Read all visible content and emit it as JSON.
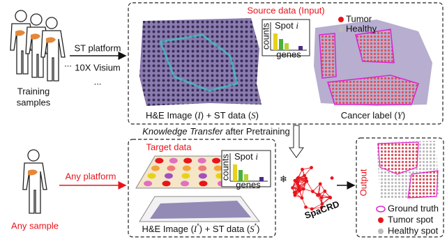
{
  "training": {
    "label_top": "Training",
    "label_bottom": "samples",
    "platform": "ST platform",
    "platform_name": "10X Visium",
    "more": "...",
    "more_people": "..."
  },
  "source_panel": {
    "title": "Source data (Input)",
    "he_caption": [
      "H&E Image (",
      "I",
      ") + ST data (",
      "S",
      ")"
    ],
    "label_caption": [
      "Cancer label (",
      "Y",
      ")"
    ],
    "legend": [
      "Tumor",
      "Healthy"
    ]
  },
  "inset": {
    "y_label": "counts",
    "spot": [
      "Spot ",
      "i"
    ],
    "x_label": "genes"
  },
  "transfer": [
    "Knowledge Transfer",
    " after Pretraining"
  ],
  "target_panel": {
    "title": "Target data",
    "platform": "Any platform",
    "sample": "Any sample",
    "caption": [
      "H&E Image (",
      "I",
      "*",
      ") + ST data (",
      "S",
      "*",
      ")"
    ]
  },
  "model": {
    "name": "SpaCRD"
  },
  "output_panel": {
    "title": "Output",
    "legend": [
      "Ground truth",
      "Tumor spot",
      "Healthy spot"
    ]
  }
}
